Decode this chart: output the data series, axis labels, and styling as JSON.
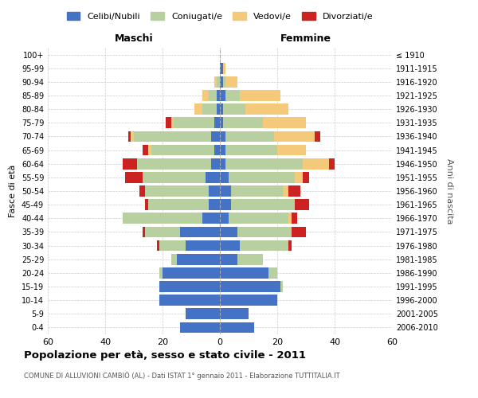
{
  "age_groups": [
    "0-4",
    "5-9",
    "10-14",
    "15-19",
    "20-24",
    "25-29",
    "30-34",
    "35-39",
    "40-44",
    "45-49",
    "50-54",
    "55-59",
    "60-64",
    "65-69",
    "70-74",
    "75-79",
    "80-84",
    "85-89",
    "90-94",
    "95-99",
    "100+"
  ],
  "birth_years": [
    "2006-2010",
    "2001-2005",
    "1996-2000",
    "1991-1995",
    "1986-1990",
    "1981-1985",
    "1976-1980",
    "1971-1975",
    "1966-1970",
    "1961-1965",
    "1956-1960",
    "1951-1955",
    "1946-1950",
    "1941-1945",
    "1936-1940",
    "1931-1935",
    "1926-1930",
    "1921-1925",
    "1916-1920",
    "1911-1915",
    "≤ 1910"
  ],
  "colors": {
    "celibi": "#4472c4",
    "coniugati": "#b8cfa0",
    "vedovi": "#f5c97a",
    "divorziati": "#cc2222"
  },
  "legend_labels": [
    "Celibi/Nubili",
    "Coniugati/e",
    "Vedovi/e",
    "Divorziati/e"
  ],
  "maschi": {
    "celibi": [
      14,
      12,
      21,
      21,
      20,
      15,
      12,
      14,
      6,
      4,
      4,
      5,
      3,
      2,
      3,
      2,
      1,
      1,
      0,
      0,
      0
    ],
    "coniugati": [
      0,
      0,
      0,
      0,
      1,
      2,
      9,
      12,
      28,
      21,
      22,
      22,
      26,
      22,
      27,
      14,
      5,
      3,
      1,
      0,
      0
    ],
    "vedovi": [
      0,
      0,
      0,
      0,
      0,
      0,
      0,
      0,
      0,
      0,
      0,
      0,
      0,
      1,
      1,
      1,
      3,
      2,
      1,
      0,
      0
    ],
    "divorziati": [
      0,
      0,
      0,
      0,
      0,
      0,
      1,
      1,
      0,
      1,
      2,
      6,
      5,
      2,
      1,
      2,
      0,
      0,
      0,
      0,
      0
    ]
  },
  "femmine": {
    "nubili": [
      12,
      10,
      20,
      21,
      17,
      6,
      7,
      6,
      3,
      4,
      4,
      3,
      2,
      2,
      2,
      1,
      1,
      2,
      1,
      1,
      0
    ],
    "coniugate": [
      0,
      0,
      0,
      1,
      3,
      9,
      17,
      19,
      21,
      22,
      18,
      23,
      27,
      18,
      17,
      14,
      8,
      5,
      1,
      0,
      0
    ],
    "vedove": [
      0,
      0,
      0,
      0,
      0,
      0,
      0,
      0,
      1,
      0,
      2,
      3,
      9,
      10,
      14,
      15,
      15,
      14,
      4,
      1,
      0
    ],
    "divorziate": [
      0,
      0,
      0,
      0,
      0,
      0,
      1,
      5,
      2,
      5,
      4,
      2,
      2,
      0,
      2,
      0,
      0,
      0,
      0,
      0,
      0
    ]
  },
  "xlim": 60,
  "title": "Popolazione per età, sesso e stato civile - 2011",
  "subtitle": "COMUNE DI ALLUVIONI CAMBIÒ (AL) - Dati ISTAT 1° gennaio 2011 - Elaborazione TUTTITALIA.IT",
  "ylabel": "Fasce di età",
  "y2label": "Anni di nascita",
  "xlabel_maschi": "Maschi",
  "xlabel_femmine": "Femmine"
}
